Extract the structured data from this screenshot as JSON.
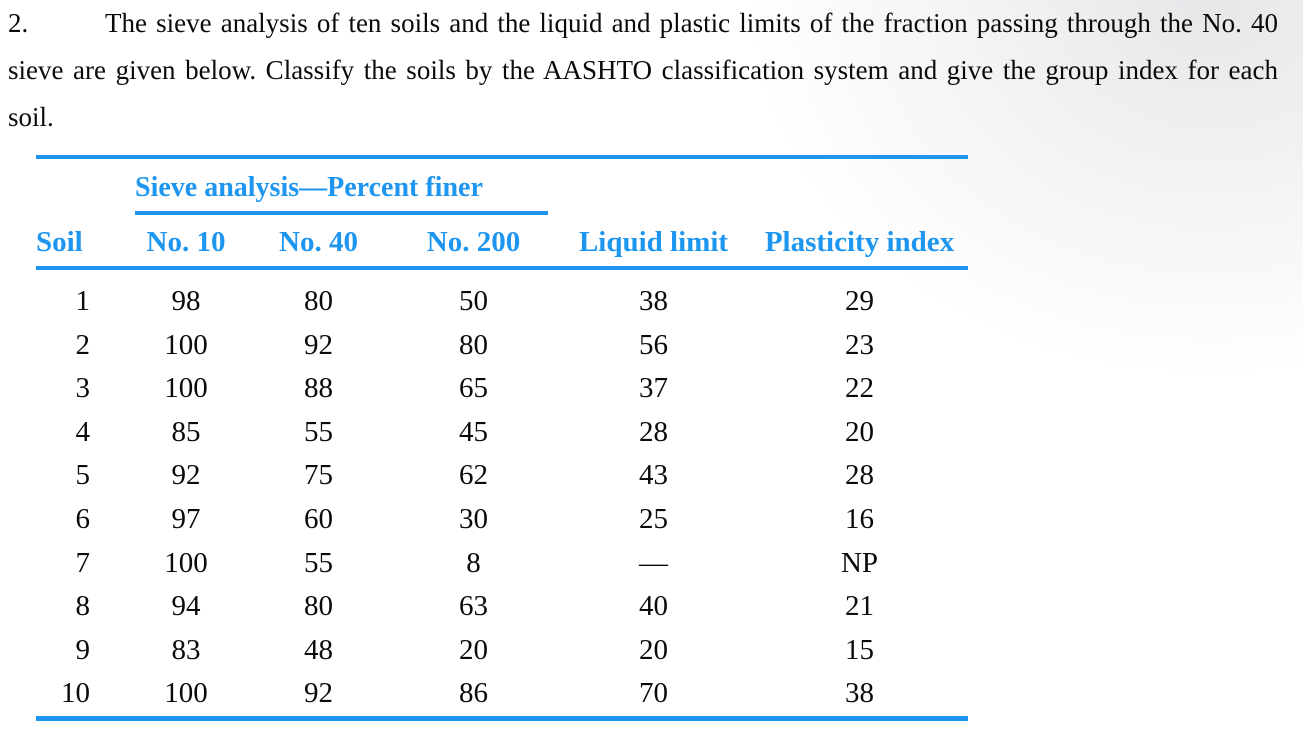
{
  "problem": {
    "number": "2.",
    "lines": [
      "The sieve analysis of ten soils and the liquid and plastic limits of the fraction passing through the No. 40",
      "sieve are given below. Classify the soils by the AASHTO classification system and give the group index for each",
      "soil."
    ]
  },
  "table": {
    "spanner": "Sieve analysis—Percent finer",
    "columns": [
      "Soil",
      "No. 10",
      "No. 40",
      "No. 200",
      "Liquid limit",
      "Plasticity index"
    ],
    "rows": [
      [
        "1",
        "98",
        "80",
        "50",
        "38",
        "29"
      ],
      [
        "2",
        "100",
        "92",
        "80",
        "56",
        "23"
      ],
      [
        "3",
        "100",
        "88",
        "65",
        "37",
        "22"
      ],
      [
        "4",
        "85",
        "55",
        "45",
        "28",
        "20"
      ],
      [
        "5",
        "92",
        "75",
        "62",
        "43",
        "28"
      ],
      [
        "6",
        "97",
        "60",
        "30",
        "25",
        "16"
      ],
      [
        "7",
        "100",
        "55",
        "8",
        "—",
        "NP"
      ],
      [
        "8",
        "94",
        "80",
        "63",
        "40",
        "21"
      ],
      [
        "9",
        "83",
        "48",
        "20",
        "20",
        "15"
      ],
      [
        "10",
        "100",
        "92",
        "86",
        "70",
        "38"
      ]
    ],
    "accent_color": "#1e96f0",
    "text_color": "#0a0a0a"
  }
}
